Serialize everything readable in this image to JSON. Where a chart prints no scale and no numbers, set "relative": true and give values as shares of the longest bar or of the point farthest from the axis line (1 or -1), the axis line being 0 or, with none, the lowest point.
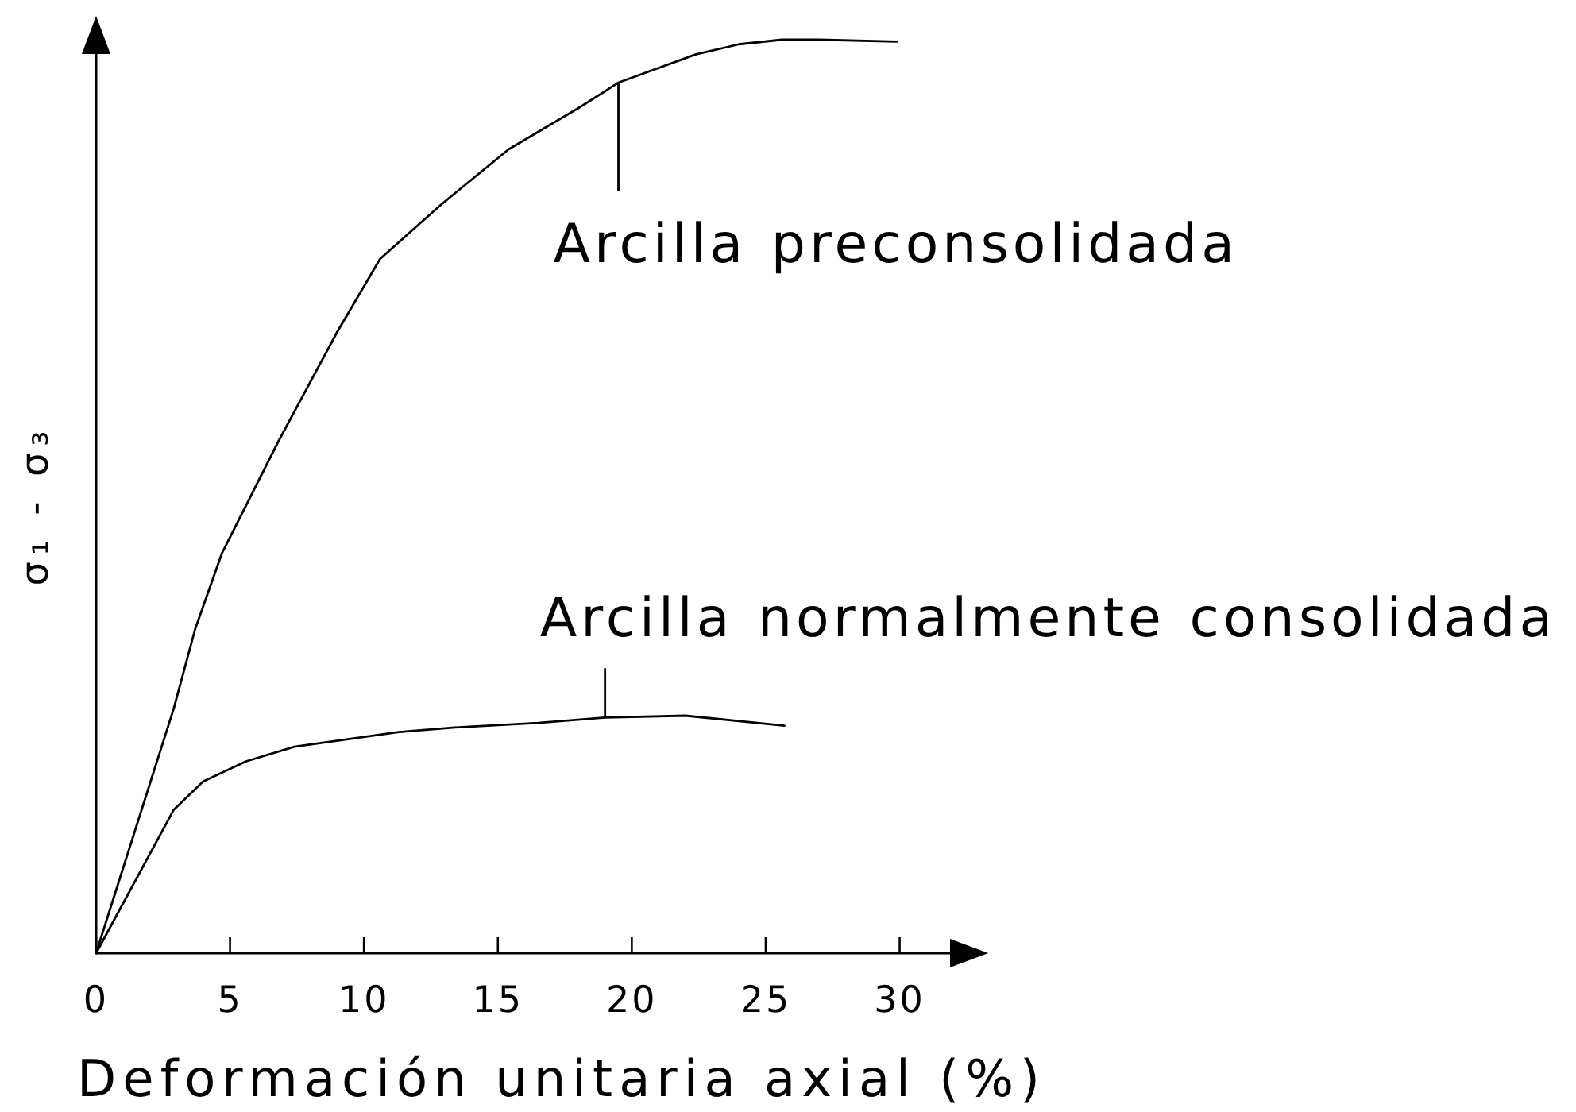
{
  "chart_data": {
    "type": "line",
    "xlabel": "Deformación unitaria axial (%)",
    "ylabel": "σ₁ - σ₃",
    "relative": true,
    "xlim": [
      0,
      32
    ],
    "xticks": [
      0,
      5,
      10,
      15,
      20,
      25,
      30
    ],
    "series": [
      {
        "color": "#000000",
        "x": [
          0,
          2.9,
          3.7,
          4.7,
          6.8,
          9.0,
          10.6,
          12.9,
          15.4,
          18.0,
          19.5,
          22.4,
          24.0,
          25.6,
          27.0,
          29.9
        ],
        "values": [
          0,
          0.268,
          0.355,
          0.438,
          0.56,
          0.68,
          0.76,
          0.82,
          0.88,
          0.925,
          0.953,
          0.984,
          0.995,
          1.0,
          1.0,
          0.998
        ]
      },
      {
        "color": "#000000",
        "x": [
          0,
          2.9,
          4.0,
          5.6,
          7.4,
          11.3,
          13.4,
          16.5,
          19.0,
          22.0,
          25.7
        ],
        "values": [
          0,
          0.157,
          0.188,
          0.21,
          0.226,
          0.242,
          0.247,
          0.252,
          0.258,
          0.26,
          0.249
        ]
      }
    ],
    "annotations": [
      {
        "text": "Arcilla preconsolidada",
        "x": 19.5,
        "y": 0.953
      },
      {
        "text": "Arcilla normalmente consolidada",
        "x": 19.0,
        "y": 0.258
      }
    ]
  }
}
